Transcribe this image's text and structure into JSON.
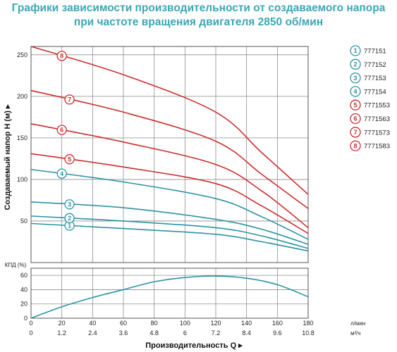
{
  "chart_data": [
    {
      "type": "line",
      "title": "Графики зависимости производительности от создаваемого напора при частоте вращения двигателя 2850 об/мин",
      "title_lines": [
        "Графики зависимости производительности от создаваемого напора",
        "при частоте вращения двигателя 2850 об/мин"
      ],
      "ylabel": "Создаваемый напор H (м) ▸",
      "xlabel": "Производительность Q ▸",
      "x_unit_1": "л/мин",
      "x_unit_2": "м³/ч",
      "xlim": [
        0,
        180
      ],
      "ylim": [
        0,
        260
      ],
      "x_ticks": [
        "0",
        "20",
        "40",
        "60",
        "80",
        "100",
        "120",
        "140",
        "160",
        "180"
      ],
      "x_ticks_secondary": [
        "0",
        "1.2",
        "2.4",
        "3.6",
        "4.8",
        "6",
        "7.2",
        "8.4",
        "9.6",
        "10.8"
      ],
      "y_ticks": [
        "50",
        "100",
        "150",
        "200",
        "250"
      ],
      "grid": true,
      "legend_position": "right",
      "series": [
        {
          "name": "777151",
          "badge": "1",
          "color": "#2b93a3",
          "x": [
            0,
            60,
            120,
            150,
            180
          ],
          "y": [
            47,
            41,
            34,
            25,
            14
          ]
        },
        {
          "name": "777152",
          "badge": "2",
          "color": "#2b93a3",
          "x": [
            0,
            60,
            120,
            150,
            180
          ],
          "y": [
            56,
            50,
            42,
            32,
            17
          ]
        },
        {
          "name": "777153",
          "badge": "3",
          "color": "#2b93a3",
          "x": [
            0,
            60,
            120,
            150,
            180
          ],
          "y": [
            73,
            66,
            52,
            40,
            22
          ]
        },
        {
          "name": "777154",
          "badge": "4",
          "color": "#2b93a3",
          "x": [
            0,
            60,
            120,
            150,
            180
          ],
          "y": [
            112,
            97,
            77,
            55,
            28
          ]
        },
        {
          "name": "7771553",
          "badge": "5",
          "color": "#cc2d2d",
          "x": [
            0,
            60,
            120,
            150,
            180
          ],
          "y": [
            131,
            115,
            95,
            68,
            35
          ]
        },
        {
          "name": "7771563",
          "badge": "6",
          "color": "#cc2d2d",
          "x": [
            0,
            60,
            120,
            150,
            180
          ],
          "y": [
            167,
            145,
            118,
            86,
            42
          ]
        },
        {
          "name": "7771573",
          "badge": "7",
          "color": "#cc2d2d",
          "x": [
            0,
            60,
            120,
            150,
            180
          ],
          "y": [
            207,
            181,
            146,
            106,
            65
          ]
        },
        {
          "name": "7771583",
          "badge": "8",
          "color": "#cc2d2d",
          "x": [
            0,
            60,
            120,
            150,
            180
          ],
          "y": [
            260,
            226,
            181,
            132,
            82
          ]
        }
      ],
      "badge_positions_x": [
        25,
        25,
        25,
        20,
        25,
        20,
        25,
        20
      ]
    },
    {
      "type": "line",
      "ylabel": "КПД (%)",
      "xlim": [
        0,
        180
      ],
      "ylim": [
        0,
        70
      ],
      "y_ticks": [
        "0",
        "20",
        "40",
        "60"
      ],
      "grid": true,
      "series": [
        {
          "color": "#2b93a3",
          "x": [
            0,
            20,
            40,
            60,
            80,
            100,
            120,
            140,
            160,
            180
          ],
          "y": [
            0,
            16,
            29,
            40,
            51,
            57,
            59,
            56,
            47,
            30
          ]
        }
      ]
    }
  ]
}
